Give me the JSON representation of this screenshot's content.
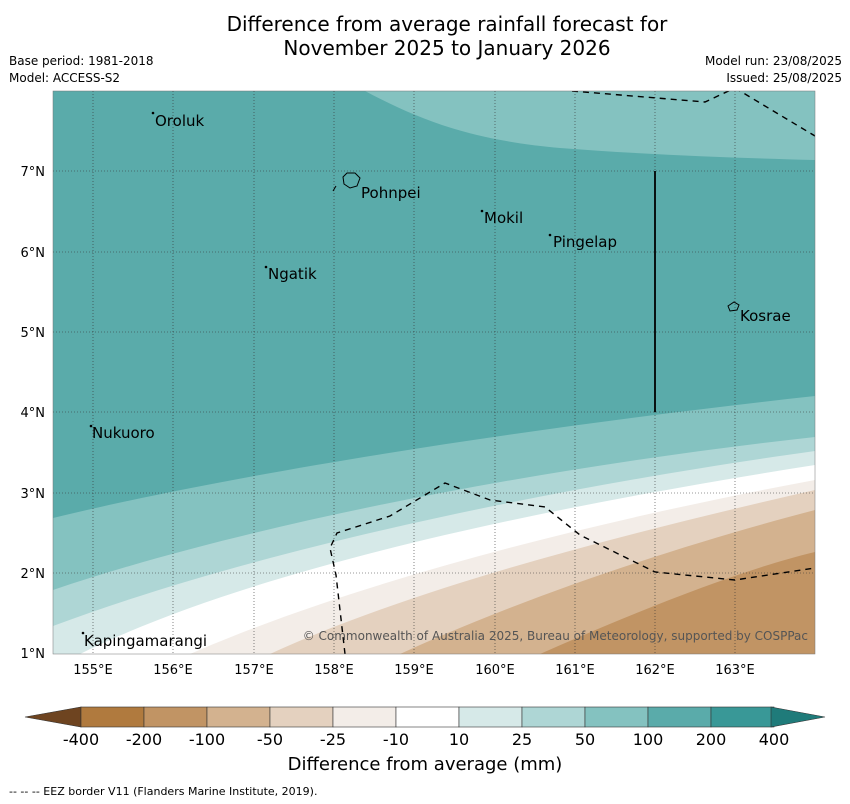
{
  "header": {
    "title_line1": "Difference from average rainfall forecast for",
    "title_line2": "November 2025 to January 2026",
    "base_period": "Base period: 1981-2018",
    "model": "Model: ACCESS-S2",
    "model_run": "Model run: 23/08/2025",
    "issued": "Issued: 25/08/2025"
  },
  "map": {
    "lon_ticks": [
      "155°E",
      "156°E",
      "157°E",
      "158°E",
      "159°E",
      "160°E",
      "161°E",
      "162°E",
      "163°E"
    ],
    "lat_ticks": [
      "1°N",
      "2°N",
      "3°N",
      "4°N",
      "5°N",
      "6°N",
      "7°N"
    ],
    "places": [
      "Oroluk",
      "Pohnpei",
      "Mokil",
      "Pingelap",
      "Ngatik",
      "Kosrae",
      "Nukuoro",
      "Kapingamarangi"
    ],
    "copyright": "© Commonwealth of Australia 2025, Bureau of Meteorology, supported by COSPPac"
  },
  "colorbar": {
    "labels": [
      "-400",
      "-200",
      "-100",
      "-50",
      "-25",
      "-10",
      "10",
      "25",
      "50",
      "100",
      "200",
      "400"
    ],
    "colors": [
      "#6e4420",
      "#b07a3e",
      "#c19464",
      "#d3b28f",
      "#e4d1bf",
      "#f3ede8",
      "#ffffff",
      "#d6e9e8",
      "#aed6d5",
      "#84c2c0",
      "#5aabaa",
      "#399897",
      "#1f7b7a"
    ],
    "title": "Difference from average (mm)"
  },
  "footer": "--  --  -- EEZ border V11 (Flanders Marine Institute, 2019)."
}
